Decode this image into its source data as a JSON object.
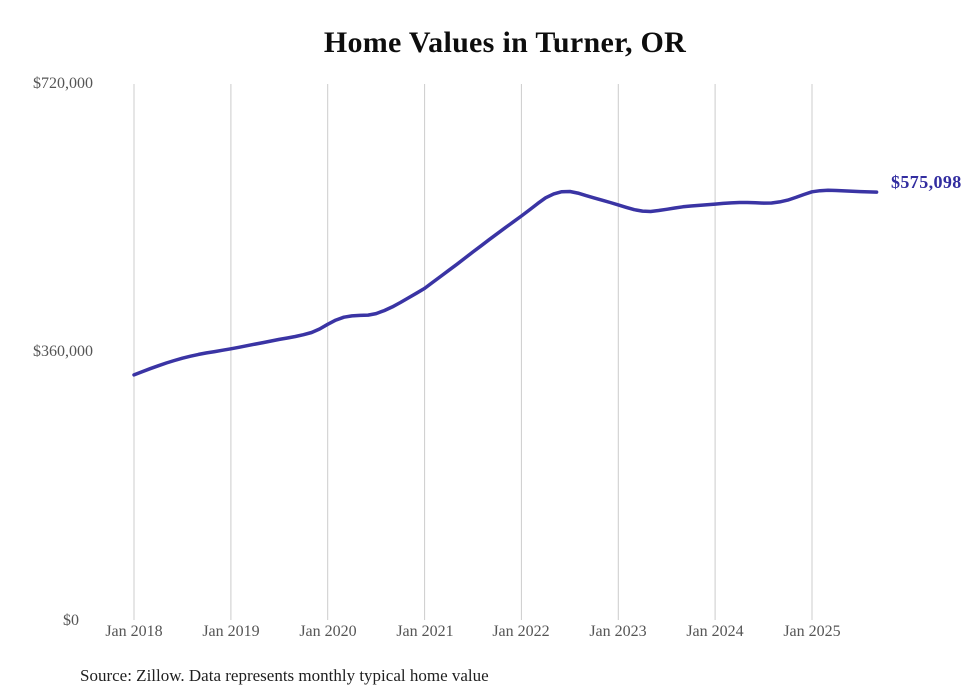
{
  "page": {
    "background": "#ffffff"
  },
  "chart": {
    "title": "Home Values in Turner, OR",
    "end_label": "$575,098",
    "source_note": "Source: Zillow. Data represents monthly typical home value",
    "colors": {
      "line": "#3a34a4",
      "end_label": "#322da0",
      "grid": "#cccccc",
      "tick": "#555555",
      "title": "#0d0d0d",
      "source": "#1f1f1f"
    }
  },
  "chart_data": {
    "type": "line",
    "title": "Home Values in Turner, OR",
    "series_name": "Monthly typical home value (Zillow)",
    "x_interval": "monthly",
    "x_start": "Jan 2018",
    "x_end": "Sep 2025",
    "x_tick_labels": [
      "Jan 2018",
      "Jan 2019",
      "Jan 2020",
      "Jan 2021",
      "Jan 2022",
      "Jan 2023",
      "Jan 2024",
      "Jan 2025"
    ],
    "y_tick_labels": [
      "$720,000",
      "$360,000",
      "$0"
    ],
    "y_tick_values": [
      720000,
      360000,
      0
    ],
    "ylim": [
      0,
      720000
    ],
    "grid": "vertical-only",
    "legend": "none",
    "last_value": 575098,
    "values": [
      330000,
      334200,
      338300,
      342200,
      345900,
      349300,
      352400,
      355100,
      357400,
      359400,
      361200,
      363100,
      365000,
      367000,
      369100,
      371200,
      373300,
      375400,
      377500,
      379500,
      381500,
      383800,
      386800,
      391500,
      397800,
      403400,
      407300,
      409100,
      409700,
      410200,
      412200,
      416200,
      421200,
      427100,
      433200,
      439500,
      446000,
      454000,
      462100,
      470200,
      478300,
      486600,
      494900,
      503100,
      511200,
      519300,
      527300,
      535200,
      543000,
      551200,
      559600,
      567400,
      572600,
      575600,
      575900,
      573700,
      570400,
      567300,
      564200,
      561100,
      557900,
      554600,
      551400,
      549600,
      549100,
      550400,
      552000,
      553800,
      555300,
      556400,
      557200,
      558100,
      559000,
      559900,
      560600,
      561100,
      561100,
      560800,
      560300,
      560500,
      561900,
      564400,
      567900,
      571900,
      575400,
      576900,
      577500,
      577200,
      576700,
      576100,
      575700,
      575300,
      575098
    ]
  }
}
